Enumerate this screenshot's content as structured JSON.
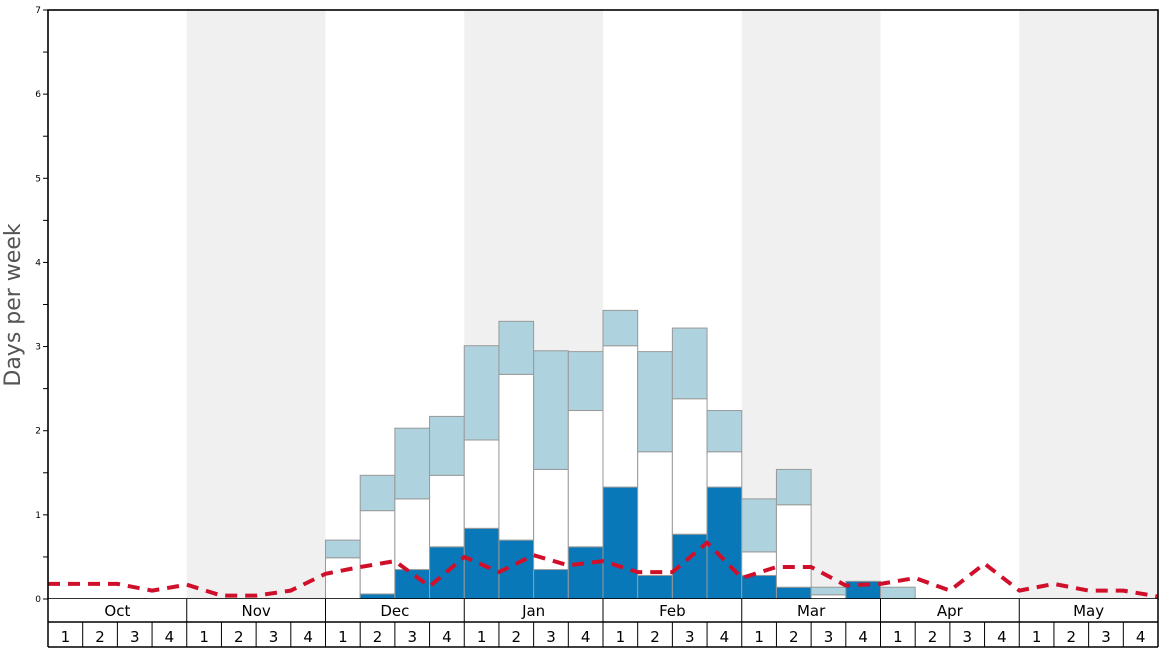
{
  "chart_data": {
    "type": "bar",
    "subtype": "stacked-bar-with-line",
    "title": "",
    "ylabel": "Days per week",
    "xlabel": "",
    "ylim": [
      0,
      7
    ],
    "yticks_major": [
      0,
      1,
      2,
      3,
      4,
      5,
      6,
      7
    ],
    "grid": false,
    "legend": "none",
    "months": [
      "Oct",
      "Nov",
      "Dec",
      "Jan",
      "Feb",
      "Mar",
      "Apr",
      "May"
    ],
    "weeks_per_month": [
      "1",
      "2",
      "3",
      "4"
    ],
    "colors": {
      "dark": "#0878b8",
      "white": "#ffffff",
      "light": "#aed3df",
      "line": "#d0102a",
      "shade": "#f0f0f0",
      "bar_stroke": "#999999"
    },
    "series": [
      {
        "values": [
          0,
          0,
          0,
          0,
          0,
          0,
          0,
          0,
          0,
          0.06,
          0.35,
          0.62,
          0.84,
          0.7,
          0.35,
          0.62,
          1.33,
          0.28,
          0.77,
          1.33,
          0.28,
          0.14,
          0,
          0.21,
          0,
          0,
          0,
          0,
          0,
          0,
          0,
          0
        ]
      },
      {
        "values": [
          0,
          0,
          0,
          0,
          0,
          0,
          0,
          0,
          0.49,
          0.99,
          0.84,
          0.85,
          1.05,
          1.97,
          1.19,
          1.62,
          1.68,
          1.47,
          1.61,
          0.42,
          0.28,
          0.98,
          0.05,
          0,
          0,
          0,
          0,
          0,
          0,
          0,
          0,
          0
        ]
      },
      {
        "values": [
          0,
          0,
          0,
          0,
          0,
          0,
          0,
          0,
          0.21,
          0.42,
          0.84,
          0.7,
          1.12,
          0.63,
          1.41,
          0.7,
          0.42,
          1.19,
          0.84,
          0.49,
          0.63,
          0.42,
          0.09,
          0,
          0.14,
          0,
          0,
          0,
          0,
          0,
          0,
          0
        ]
      },
      {
        "type": "line",
        "values": [
          0.18,
          0.18,
          0.18,
          0.1,
          0.17,
          0.04,
          0.04,
          0.1,
          0.3,
          0.38,
          0.45,
          0.15,
          0.5,
          0.32,
          0.52,
          0.4,
          0.45,
          0.32,
          0.32,
          0.67,
          0.25,
          0.38,
          0.38,
          0.16,
          0.18,
          0.25,
          0.1,
          0.42,
          0.1,
          0.18,
          0.1,
          0.1,
          0.03
        ]
      }
    ]
  }
}
